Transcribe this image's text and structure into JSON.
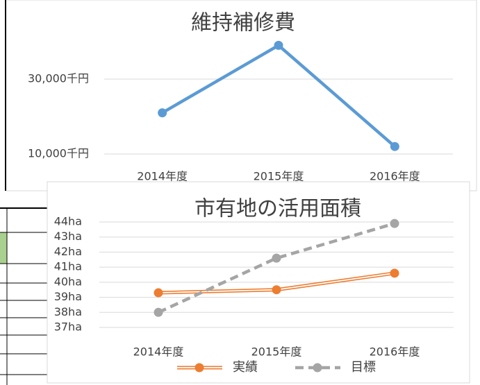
{
  "chart_data": [
    {
      "type": "line",
      "title": "維持補修費",
      "categories": [
        "2014年度",
        "2015年度",
        "2016年度"
      ],
      "series": [
        {
          "name": "維持補修費",
          "color": "#5b9bd5",
          "line_style": "solid",
          "values": [
            21000,
            39000,
            12000
          ]
        }
      ],
      "ylim": [
        10000,
        40000
      ],
      "yticks": [
        {
          "value": 10000,
          "label": "10,000千円"
        },
        {
          "value": 30000,
          "label": "30,000千円"
        }
      ],
      "grid": true,
      "legend": false
    },
    {
      "type": "line",
      "title": "市有地の活用面積",
      "categories": [
        "2014年度",
        "2015年度",
        "2016年度"
      ],
      "series": [
        {
          "name": "実績",
          "color": "#ed7d31",
          "line_style": "double",
          "values": [
            39.3,
            39.5,
            40.6
          ]
        },
        {
          "name": "目標",
          "color": "#a5a5a5",
          "line_style": "dashed",
          "values": [
            38,
            41.6,
            43.9
          ]
        }
      ],
      "ylim": [
        37,
        44
      ],
      "yticks": [
        {
          "value": 37,
          "label": "37ha"
        },
        {
          "value": 38,
          "label": "38ha"
        },
        {
          "value": 39,
          "label": "39ha"
        },
        {
          "value": 40,
          "label": "40ha"
        },
        {
          "value": 41,
          "label": "41ha"
        },
        {
          "value": 42,
          "label": "42ha"
        },
        {
          "value": 43,
          "label": "43ha"
        },
        {
          "value": 44,
          "label": "44ha"
        }
      ],
      "grid": true,
      "legend": "bottom"
    }
  ]
}
